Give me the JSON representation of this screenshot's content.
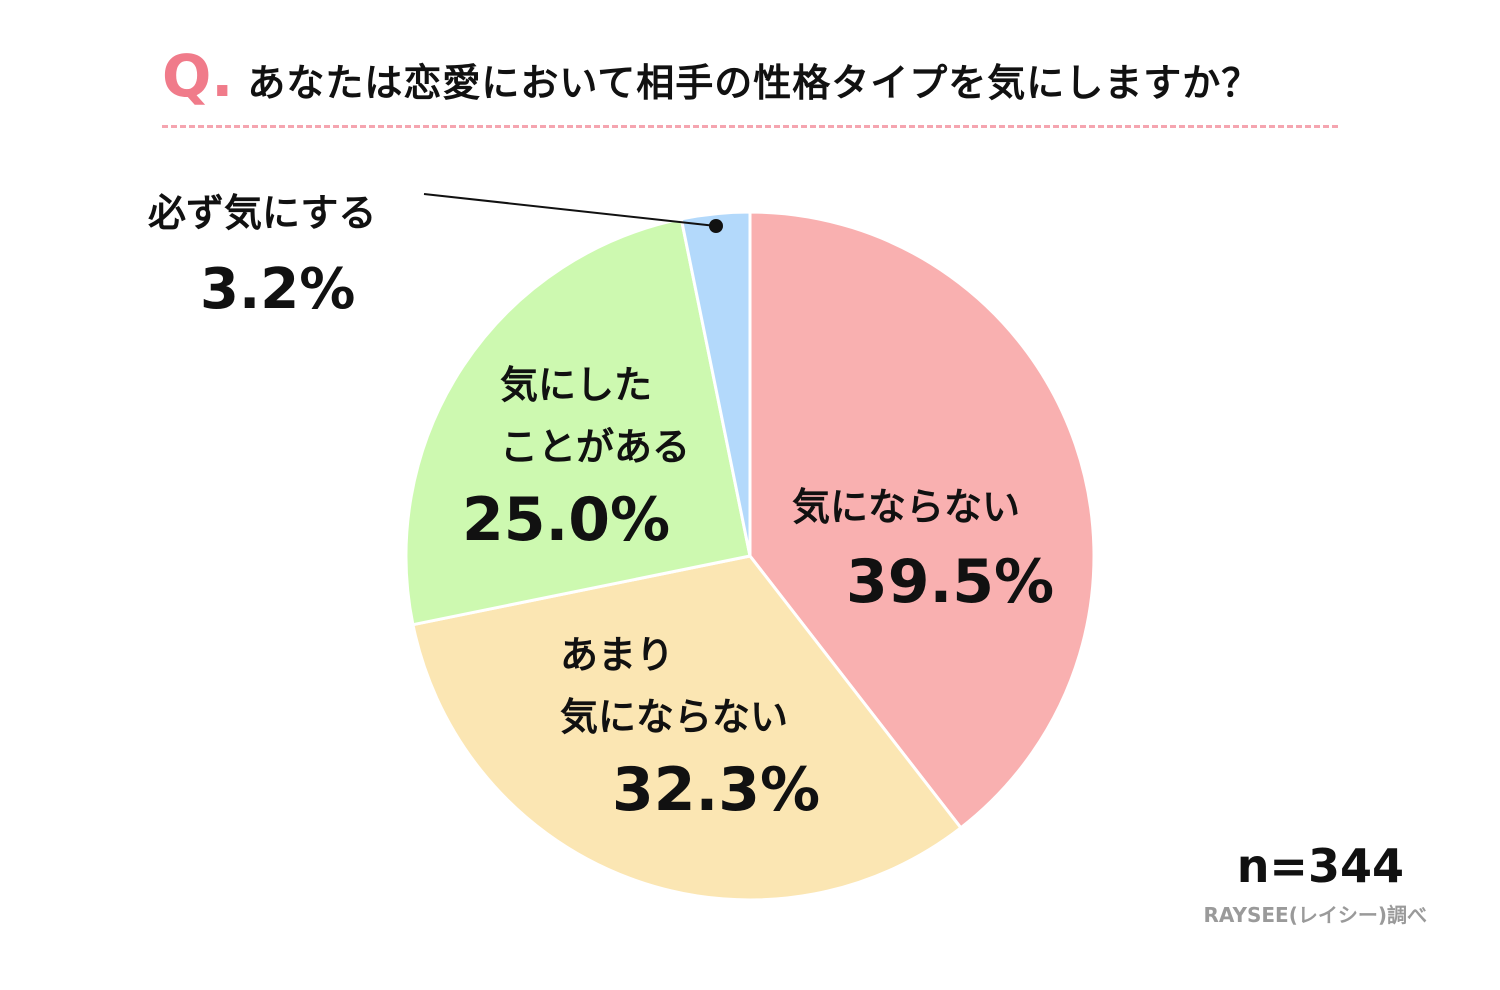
{
  "header": {
    "q_mark": "Q.",
    "question": "あなたは恋愛において相手の性格タイプを気にしますか？"
  },
  "chart_data": {
    "type": "pie",
    "start_angle_deg": 0,
    "direction": "clockwise",
    "slices": [
      {
        "label_lines": [
          "気にならない"
        ],
        "value": 39.5,
        "value_label": "39.5%",
        "color": "#f9b0b0"
      },
      {
        "label_lines": [
          "あまり",
          "気にならない"
        ],
        "value": 32.3,
        "value_label": "32.3%",
        "color": "#fbe6b3"
      },
      {
        "label_lines": [
          "気にした",
          "ことがある"
        ],
        "value": 25.0,
        "value_label": "25.0%",
        "color": "#cdf9b0"
      },
      {
        "label_lines": [
          "必ず気にする"
        ],
        "value": 3.2,
        "value_label": "3.2%",
        "color": "#b3d9fb",
        "callout": true
      }
    ]
  },
  "footer": {
    "n_label": "n=344",
    "source": "RAYSEE(レイシー)調べ"
  },
  "colors": {
    "accent": "#f07b8a",
    "divider": "#f5a5b0",
    "source_text": "#9a9a9a",
    "slice_border": "#ffffff"
  }
}
